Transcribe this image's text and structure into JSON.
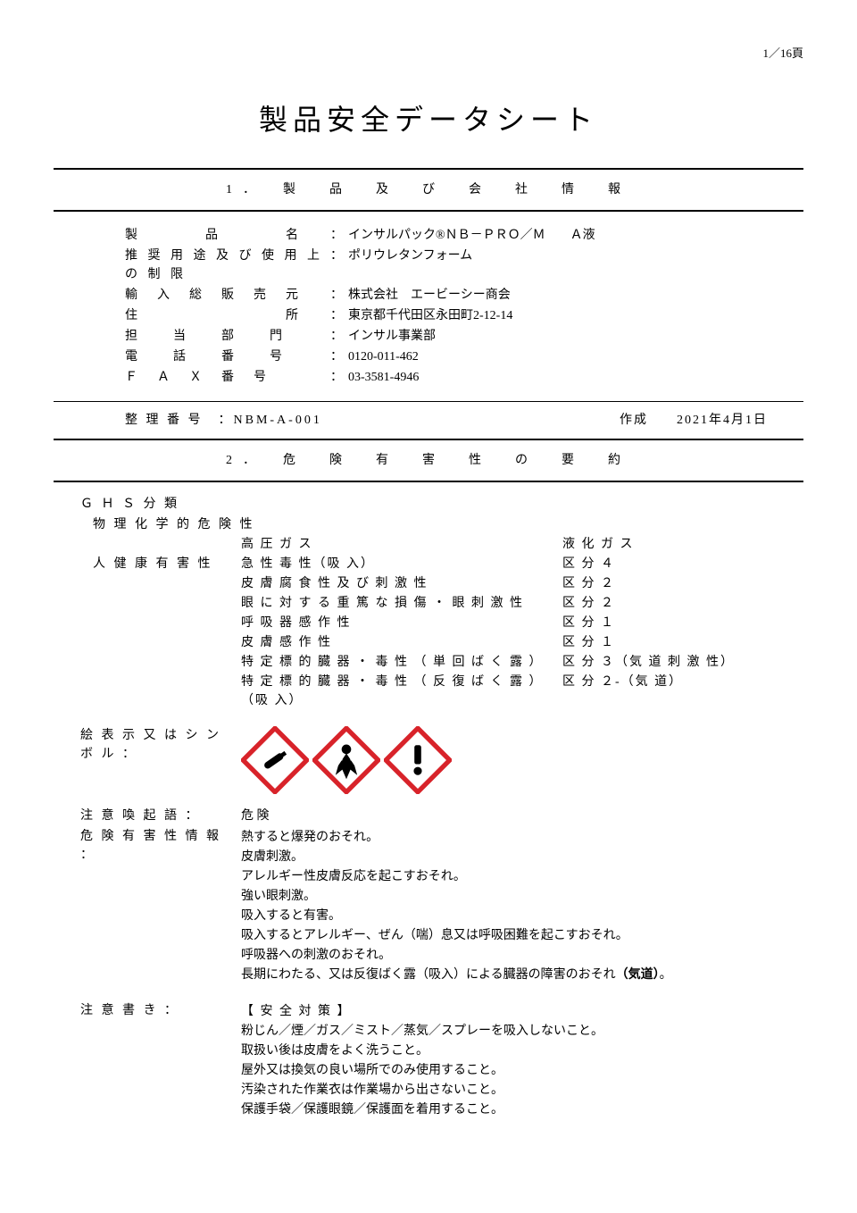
{
  "page_number": "1／16頁",
  "title": "製品安全データシート",
  "section1_head": "1．　製　品　及　び　会　社　情　報",
  "info": {
    "rows": [
      {
        "label": "製　　　　品　　　　名",
        "value": "インサルパック®ＮＢ－ＰＲＯ／Ｍ　　Ａ液"
      },
      {
        "label": "推 奨 用 途 及 び 使 用 上 の 制 限",
        "value": "ポリウレタンフォーム"
      },
      {
        "label": "輸　入　総　販　売　元",
        "value": "株式会社　エービーシー商会"
      },
      {
        "label": "住　　　　　　　　　所",
        "value": "東京都千代田区永田町2-12-14"
      },
      {
        "label": "担　　当　　部　　門",
        "value": "インサル事業部"
      },
      {
        "label": "電　　話　　番　　号",
        "value": "0120-011-462"
      },
      {
        "label": "Ｆ　Ａ　Ｘ　番　号",
        "value": "03-3581-4946"
      }
    ]
  },
  "ref": {
    "left": "整 理 番 号　：NBM-A-001",
    "right": "作成　　2021年4月1日"
  },
  "section2_head": "2．　危　険　有　害　性　の　要　約",
  "ghs_title": "Ｇ Ｈ Ｓ 分 類",
  "phys_title": "物 理 化 学 的 危 険 性",
  "phys_rows": [
    {
      "item": "高 圧 ガ ス",
      "cls": "液 化 ガ ス"
    }
  ],
  "health_title": "人 健 康 有 害 性",
  "health_rows": [
    {
      "item": "急 性 毒 性（吸 入）",
      "cls": "区 分 ４"
    },
    {
      "item": "皮 膚 腐 食 性 及 び 刺 激 性",
      "cls": "区 分 ２"
    },
    {
      "item": "眼 に 対 す る 重 篤 な 損 傷 ・ 眼 刺 激 性",
      "cls": "区 分 ２"
    },
    {
      "item": "呼 吸 器 感 作 性",
      "cls": "区 分 １"
    },
    {
      "item": "皮 膚 感 作 性",
      "cls": "区 分 １"
    },
    {
      "item": "特 定 標 的 臓 器 ・ 毒 性 （ 単 回 ば く 露 ）",
      "cls": "区 分 ３（気 道 刺 激 性）"
    },
    {
      "item": "特 定 標 的 臓 器 ・ 毒 性 （ 反 復 ば く 露 ）（吸 入）",
      "cls": "区 分 ２-（気 道）"
    }
  ],
  "picto_label": "絵 表 示 又 は シ ン ボ ル ：",
  "pictograms": {
    "border_color": "#d8232a",
    "fill_color": "#ffffff",
    "icon_color": "#000000"
  },
  "signal_label": "注 意 喚 起 語 ：",
  "signal_value": "危 険",
  "hazard_label": "危 険 有 害 性 情 報 ：",
  "hazard_lines": [
    "熱すると爆発のおそれ。",
    "皮膚刺激。",
    "アレルギー性皮膚反応を起こすおそれ。",
    "強い眼刺激。",
    "吸入すると有害。",
    "吸入するとアレルギー、ぜん（喘）息又は呼吸困難を起こすおそれ。",
    "呼吸器への刺激のおそれ。"
  ],
  "hazard_last_prefix": "長期にわたる、又は反復ばく露（吸入）による臓器の障害のおそれ",
  "hazard_last_bold": "（気道）",
  "hazard_last_suffix": "。",
  "precaution_label": "注 意 書 き ：",
  "precaution_head": "【 安 全 対 策 】",
  "precaution_lines": [
    "粉じん／煙／ガス／ミスト／蒸気／スプレーを吸入しないこと。",
    "取扱い後は皮膚をよく洗うこと。",
    "屋外又は換気の良い場所でのみ使用すること。",
    "汚染された作業衣は作業場から出さないこと。",
    "保護手袋／保護眼鏡／保護面を着用すること。"
  ]
}
